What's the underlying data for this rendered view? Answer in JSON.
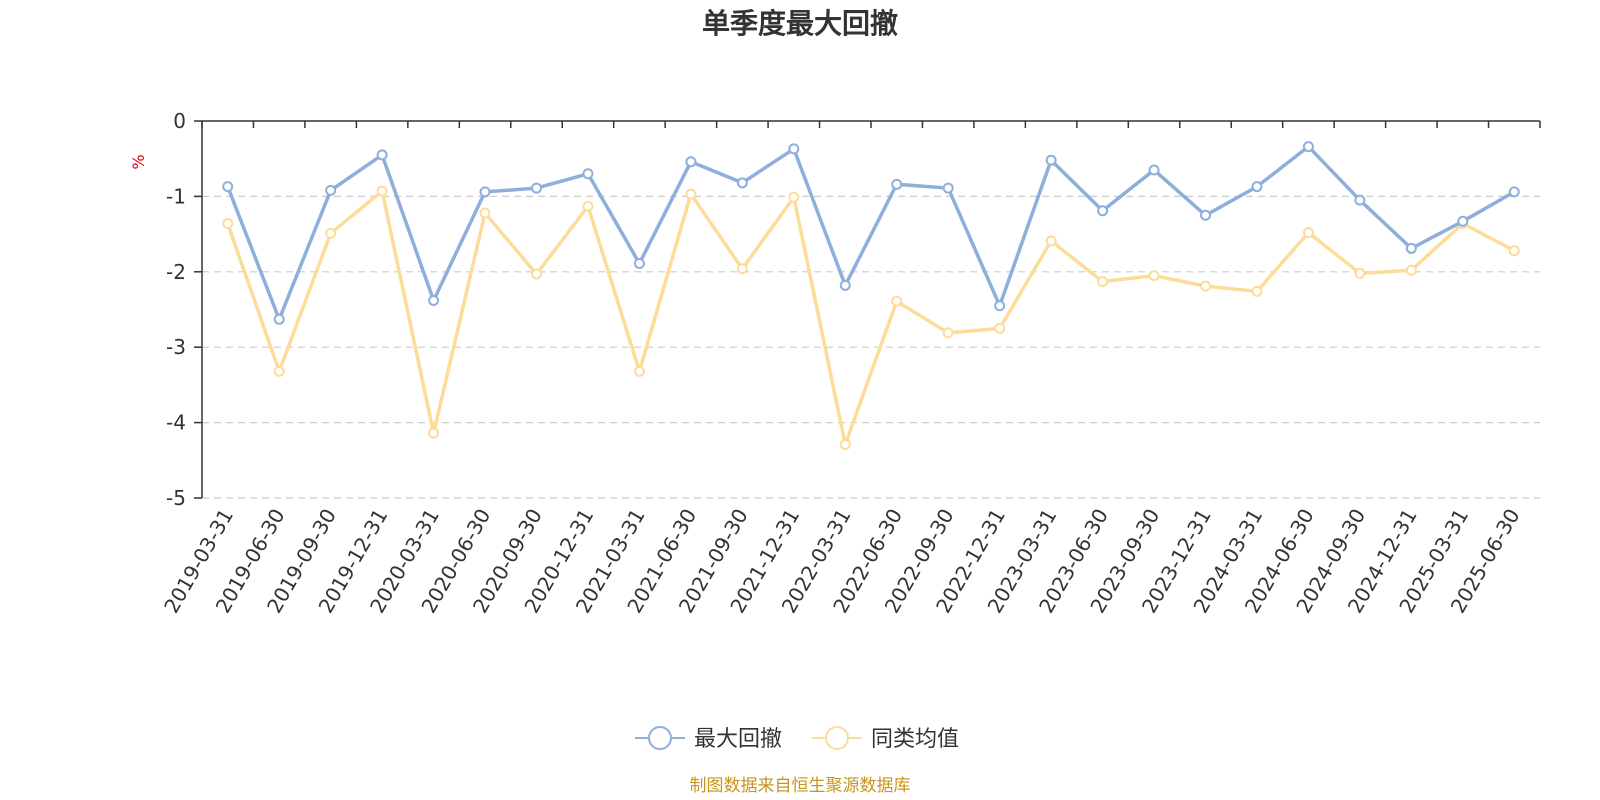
{
  "chart_data": {
    "type": "line",
    "title": "单季度最大回撤",
    "ylabel": "%",
    "ylim": [
      -5,
      0
    ],
    "yticks": [
      0,
      -1,
      -2,
      -3,
      -4,
      -5
    ],
    "grid": true,
    "legend_position": "bottom",
    "categories": [
      "2019-03-31",
      "2019-06-30",
      "2019-09-30",
      "2019-12-31",
      "2020-03-31",
      "2020-06-30",
      "2020-09-30",
      "2020-12-31",
      "2021-03-31",
      "2021-06-30",
      "2021-09-30",
      "2021-12-31",
      "2022-03-31",
      "2022-06-30",
      "2022-09-30",
      "2022-12-31",
      "2023-03-31",
      "2023-06-30",
      "2023-09-30",
      "2023-12-31",
      "2024-03-31",
      "2024-06-30",
      "2024-09-30",
      "2024-12-31",
      "2025-03-31",
      "2025-06-30"
    ],
    "series": [
      {
        "name": "最大回撤",
        "color": "#8eaedb",
        "values": [
          -0.87,
          -2.63,
          -0.92,
          -0.45,
          -2.38,
          -0.94,
          -0.89,
          -0.7,
          -1.89,
          -0.54,
          -0.82,
          -0.37,
          -2.18,
          -0.84,
          -0.89,
          -2.45,
          -0.52,
          -1.19,
          -0.65,
          -1.25,
          -0.87,
          -0.34,
          -1.05,
          -1.69,
          -1.33,
          -0.94
        ]
      },
      {
        "name": "同类均值",
        "color": "#fddc9a",
        "values": [
          -1.36,
          -3.32,
          -1.49,
          -0.93,
          -4.14,
          -1.22,
          -2.03,
          -1.13,
          -3.32,
          -0.97,
          -1.96,
          -1.01,
          -4.29,
          -2.39,
          -2.81,
          -2.75,
          -1.59,
          -2.13,
          -2.05,
          -2.19,
          -2.26,
          -1.48,
          -2.02,
          -1.98,
          -1.36,
          -1.72
        ]
      }
    ]
  },
  "source_text": "制图数据来自恒生聚源数据库"
}
